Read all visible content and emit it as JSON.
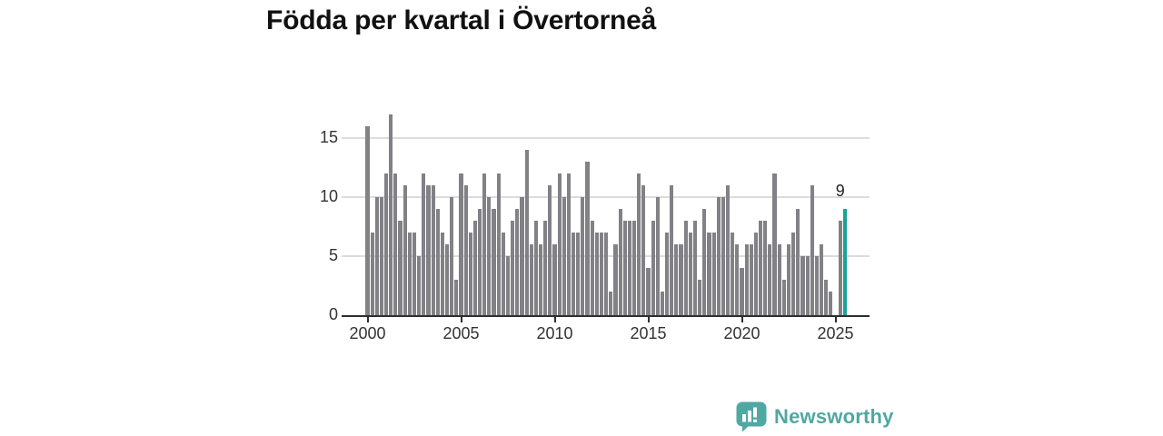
{
  "title": "Födda per kvartal i Övertorneå",
  "chart_data": {
    "type": "bar",
    "title": "Födda per kvartal i Övertorneå",
    "x_start_year": 2000,
    "x_start_quarter": 1,
    "x_tick_labels": [
      "2000",
      "2005",
      "2010",
      "2015",
      "2020",
      "2025"
    ],
    "y_tick_labels": [
      "0",
      "5",
      "10",
      "15"
    ],
    "y_ticks": [
      0,
      5,
      10,
      15
    ],
    "ylim": [
      0,
      17.5
    ],
    "grid": "horizontal",
    "legend": "none",
    "bar_color": "#818186",
    "highlight_color": "#17a398",
    "gridline_color": "#dcdcdc",
    "axis_color": "#2e2e2e",
    "values": [
      16,
      7,
      10,
      10,
      12,
      17,
      12,
      8,
      11,
      7,
      7,
      5,
      12,
      11,
      11,
      9,
      7,
      6,
      10,
      3,
      12,
      11,
      7,
      8,
      9,
      12,
      10,
      9,
      12,
      7,
      5,
      8,
      9,
      10,
      14,
      6,
      8,
      6,
      8,
      11,
      6,
      12,
      10,
      12,
      7,
      7,
      10,
      13,
      8,
      7,
      7,
      7,
      2,
      6,
      9,
      8,
      8,
      8,
      12,
      11,
      4,
      8,
      10,
      2,
      7,
      11,
      6,
      6,
      8,
      7,
      8,
      3,
      9,
      7,
      7,
      10,
      10,
      11,
      7,
      6,
      4,
      6,
      6,
      7,
      8,
      8,
      6,
      12,
      6,
      3,
      6,
      7,
      9,
      5,
      5,
      11,
      5,
      6,
      3,
      2,
      null,
      8,
      9
    ],
    "highlight_index": 102,
    "annotation": {
      "text": "9",
      "value": 9
    }
  },
  "branding": {
    "logo_text": "Newsworthy",
    "logo_color": "#4fa8a1",
    "logo_icon": "speech-bubble-bar-chart"
  }
}
